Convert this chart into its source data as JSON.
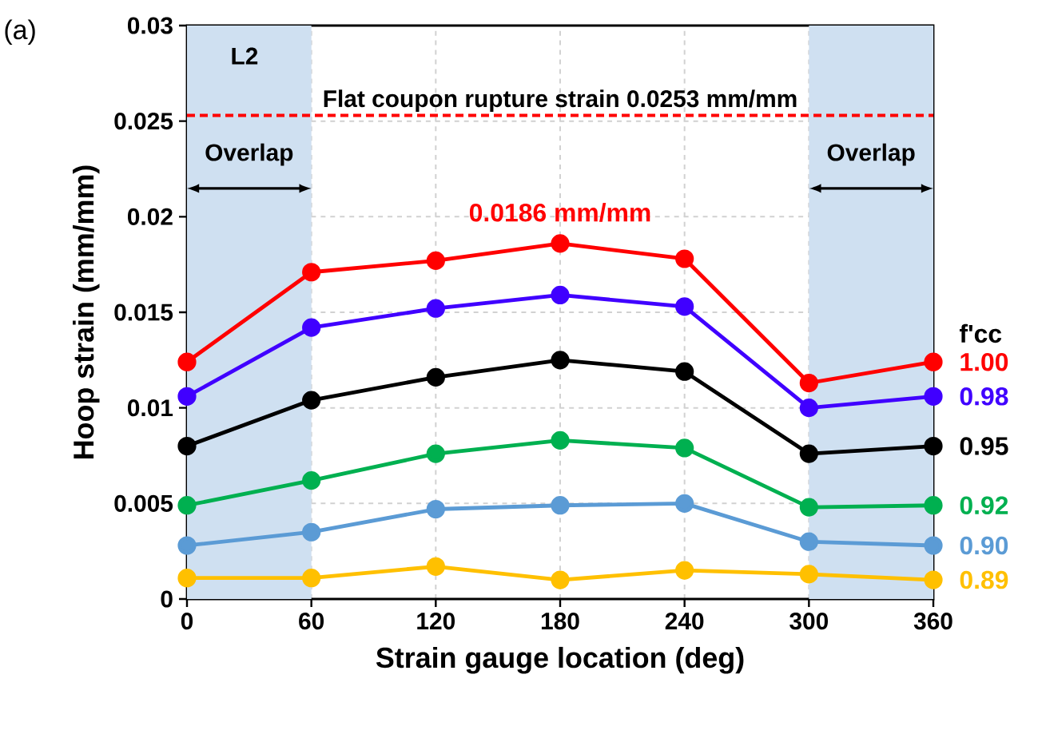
{
  "chart_data": {
    "type": "line",
    "xlabel": "Strain gauge location (deg)",
    "ylabel": "Hoop strain (mm/mm)",
    "legend_title": "f'cc",
    "legend": "right",
    "grid": true,
    "marker": "circle",
    "line_style": "solid",
    "x": [
      0,
      60,
      120,
      180,
      240,
      300,
      360
    ],
    "xlim": [
      0,
      360
    ],
    "xticks": [
      0,
      60,
      120,
      180,
      240,
      300,
      360
    ],
    "ylim": [
      0,
      0.03
    ],
    "yticks": [
      0,
      0.005,
      0.01,
      0.015,
      0.02,
      0.025,
      0.03
    ],
    "series": [
      {
        "name": "1.00",
        "color": "#ff0000",
        "values": [
          0.0124,
          0.0171,
          0.0177,
          0.0186,
          0.0178,
          0.0113,
          0.0124
        ]
      },
      {
        "name": "0.98",
        "color": "#4000ff",
        "values": [
          0.0106,
          0.0142,
          0.0152,
          0.0159,
          0.0153,
          0.01,
          0.0106
        ]
      },
      {
        "name": "0.95",
        "color": "#000000",
        "values": [
          0.008,
          0.0104,
          0.0116,
          0.0125,
          0.0119,
          0.0076,
          0.008
        ]
      },
      {
        "name": "0.92",
        "color": "#00b050",
        "values": [
          0.0049,
          0.0062,
          0.0076,
          0.0083,
          0.0079,
          0.0048,
          0.0049
        ]
      },
      {
        "name": "0.90",
        "color": "#5b9bd5",
        "values": [
          0.0028,
          0.0035,
          0.0047,
          0.0049,
          0.005,
          0.003,
          0.0028
        ]
      },
      {
        "name": "0.89",
        "color": "#ffc000",
        "values": [
          0.0011,
          0.0011,
          0.0017,
          0.001,
          0.0015,
          0.0013,
          0.001
        ]
      }
    ],
    "ref_lines": [
      {
        "axis": "y",
        "value": 0.0253,
        "label": "Flat coupon rupture strain 0.0253 mm/mm",
        "color": "#ff0000",
        "line_style": "dashed"
      }
    ],
    "bands": [
      {
        "axis": "x",
        "from": 0,
        "to": 60,
        "label": "Overlap",
        "color": "#cfe0f1"
      },
      {
        "axis": "x",
        "from": 300,
        "to": 360,
        "label": "Overlap",
        "color": "#cfe0f1"
      }
    ],
    "annotations": [
      "(a)",
      "L2",
      {
        "text": "0.0186 mm/mm",
        "x": 180,
        "y": 0.0186
      }
    ]
  }
}
